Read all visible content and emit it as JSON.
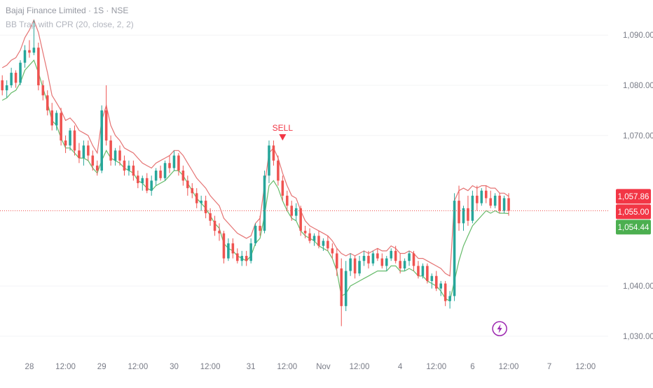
{
  "legend": {
    "symbol_line": "Bajaj Finance Limited · 1S · NSE",
    "indicator_line": "BB Trap with CPR (20, close, 2, 2)"
  },
  "colors": {
    "up": "#26a69a",
    "down": "#ef5350",
    "upper_band": "#e57373",
    "lower_band": "#66bb6a",
    "price_line": "#ef5350",
    "axis_text": "#787b86",
    "badge_red": "#f23645",
    "badge_green": "#4caf50",
    "signal": "#f23645",
    "bolt": "#9c27b0"
  },
  "price_axis": {
    "ticks": [
      {
        "value": 1090,
        "label": "1,090.00"
      },
      {
        "value": 1080,
        "label": "1,080.00"
      },
      {
        "value": 1070,
        "label": "1,070.00"
      },
      {
        "value": 1040,
        "label": "1,040.00"
      },
      {
        "value": 1030,
        "label": "1,030.00"
      }
    ],
    "badges": [
      {
        "value": 1057.86,
        "label": "1,057.86",
        "color": "#f23645"
      },
      {
        "value": 1055.0,
        "label": "1,055.00",
        "color": "#f23645"
      },
      {
        "value": 1054.44,
        "label": "1,054.44",
        "color": "#4caf50"
      }
    ]
  },
  "time_axis": {
    "ticks": [
      {
        "bar": 6,
        "label": "28"
      },
      {
        "bar": 14,
        "label": "12:00"
      },
      {
        "bar": 22,
        "label": "29"
      },
      {
        "bar": 30,
        "label": "12:00"
      },
      {
        "bar": 38,
        "label": "30"
      },
      {
        "bar": 46,
        "label": "12:00"
      },
      {
        "bar": 55,
        "label": "31"
      },
      {
        "bar": 63,
        "label": "12:00"
      },
      {
        "bar": 71,
        "label": "Nov"
      },
      {
        "bar": 79,
        "label": "12:00"
      },
      {
        "bar": 88,
        "label": "4"
      },
      {
        "bar": 96,
        "label": "12:00"
      },
      {
        "bar": 104,
        "label": "6"
      },
      {
        "bar": 112,
        "label": "12:00"
      },
      {
        "bar": 121,
        "label": "7"
      },
      {
        "bar": 129,
        "label": "12:00"
      }
    ]
  },
  "chart_data": {
    "type": "candlestick",
    "title": "Bajaj Finance Limited · 1S · NSE",
    "indicator": "BB Trap with CPR (20, close, 2, 2)",
    "ylim": [
      1026.5,
      1097
    ],
    "x_range": [
      -0.5,
      134
    ],
    "last_price": 1055.0,
    "candles": [
      [
        1081.0,
        1082.0,
        1078.0,
        1079.0
      ],
      [
        1079.0,
        1081.0,
        1077.5,
        1080.0
      ],
      [
        1080.0,
        1083.5,
        1079.5,
        1082.5
      ],
      [
        1082.5,
        1083.0,
        1079.5,
        1080.5
      ],
      [
        1080.5,
        1085.0,
        1080.0,
        1084.5
      ],
      [
        1084.5,
        1088.0,
        1083.5,
        1087.0
      ],
      [
        1087.0,
        1089.0,
        1085.5,
        1086.5
      ],
      [
        1086.5,
        1093.0,
        1086.0,
        1087.5
      ],
      [
        1087.5,
        1088.5,
        1079.0,
        1080.0
      ],
      [
        1080.0,
        1081.0,
        1077.0,
        1078.0
      ],
      [
        1078.0,
        1079.0,
        1074.0,
        1075.0
      ],
      [
        1075.0,
        1076.5,
        1071.0,
        1072.0
      ],
      [
        1072.0,
        1075.0,
        1071.0,
        1074.5
      ],
      [
        1074.5,
        1075.5,
        1068.0,
        1069.0
      ],
      [
        1069.0,
        1070.0,
        1066.5,
        1068.0
      ],
      [
        1068.0,
        1071.5,
        1067.0,
        1071.0
      ],
      [
        1071.0,
        1072.0,
        1066.0,
        1067.0
      ],
      [
        1067.0,
        1068.5,
        1064.5,
        1065.5
      ],
      [
        1065.5,
        1069.0,
        1064.0,
        1068.0
      ],
      [
        1068.0,
        1069.0,
        1065.0,
        1066.0
      ],
      [
        1066.0,
        1067.0,
        1063.0,
        1064.0
      ],
      [
        1064.0,
        1065.0,
        1062.0,
        1063.0
      ],
      [
        1063.0,
        1076.0,
        1062.5,
        1075.0
      ],
      [
        1075.0,
        1080.0,
        1068.0,
        1069.0
      ],
      [
        1069.0,
        1070.0,
        1064.0,
        1065.0
      ],
      [
        1065.0,
        1067.5,
        1064.0,
        1067.0
      ],
      [
        1067.0,
        1068.0,
        1064.0,
        1065.0
      ],
      [
        1065.0,
        1066.0,
        1062.0,
        1063.0
      ],
      [
        1063.0,
        1065.0,
        1062.0,
        1064.0
      ],
      [
        1064.0,
        1065.0,
        1061.0,
        1062.0
      ],
      [
        1062.0,
        1063.0,
        1059.5,
        1060.5
      ],
      [
        1060.5,
        1062.0,
        1059.0,
        1061.5
      ],
      [
        1061.5,
        1062.5,
        1058.5,
        1059.0
      ],
      [
        1059.0,
        1062.0,
        1058.0,
        1061.0
      ],
      [
        1061.0,
        1063.5,
        1060.0,
        1063.0
      ],
      [
        1063.0,
        1064.0,
        1061.0,
        1061.5
      ],
      [
        1061.5,
        1065.0,
        1061.0,
        1064.5
      ],
      [
        1064.5,
        1066.0,
        1062.5,
        1063.5
      ],
      [
        1063.5,
        1067.0,
        1063.0,
        1066.0
      ],
      [
        1066.0,
        1066.5,
        1062.0,
        1063.0
      ],
      [
        1063.0,
        1064.0,
        1060.0,
        1061.0
      ],
      [
        1061.0,
        1062.0,
        1058.0,
        1059.5
      ],
      [
        1059.5,
        1060.5,
        1057.5,
        1058.5
      ],
      [
        1058.5,
        1059.5,
        1055.5,
        1056.5
      ],
      [
        1056.5,
        1058.0,
        1055.0,
        1057.0
      ],
      [
        1057.0,
        1058.0,
        1053.5,
        1054.5
      ],
      [
        1054.5,
        1055.5,
        1052.0,
        1053.0
      ],
      [
        1053.0,
        1054.0,
        1050.0,
        1051.0
      ],
      [
        1051.0,
        1052.5,
        1049.0,
        1050.5
      ],
      [
        1050.5,
        1051.0,
        1044.5,
        1045.5
      ],
      [
        1045.5,
        1049.5,
        1045.0,
        1048.5
      ],
      [
        1048.5,
        1049.5,
        1045.5,
        1046.5
      ],
      [
        1046.5,
        1047.5,
        1044.5,
        1045.0
      ],
      [
        1045.0,
        1047.0,
        1044.0,
        1046.0
      ],
      [
        1046.0,
        1047.0,
        1044.0,
        1045.0
      ],
      [
        1045.0,
        1049.5,
        1044.5,
        1048.5
      ],
      [
        1048.5,
        1052.5,
        1048.0,
        1052.0
      ],
      [
        1052.0,
        1054.0,
        1050.0,
        1051.0
      ],
      [
        1051.0,
        1063.0,
        1050.5,
        1062.0
      ],
      [
        1062.0,
        1069.0,
        1060.5,
        1068.0
      ],
      [
        1068.0,
        1069.0,
        1064.0,
        1065.0
      ],
      [
        1065.0,
        1066.0,
        1060.0,
        1061.0
      ],
      [
        1061.0,
        1062.0,
        1057.0,
        1058.0
      ],
      [
        1058.0,
        1059.0,
        1055.0,
        1056.0
      ],
      [
        1056.0,
        1057.0,
        1053.0,
        1054.0
      ],
      [
        1054.0,
        1056.5,
        1053.0,
        1055.5
      ],
      [
        1055.5,
        1056.0,
        1050.0,
        1051.0
      ],
      [
        1051.0,
        1052.0,
        1049.5,
        1050.5
      ],
      [
        1050.5,
        1051.5,
        1048.5,
        1049.0
      ],
      [
        1049.0,
        1050.5,
        1048.0,
        1050.0
      ],
      [
        1050.0,
        1051.0,
        1047.5,
        1048.0
      ],
      [
        1048.0,
        1049.5,
        1047.0,
        1049.0
      ],
      [
        1049.0,
        1050.0,
        1047.0,
        1047.5
      ],
      [
        1047.5,
        1048.5,
        1045.5,
        1046.5
      ],
      [
        1046.5,
        1047.5,
        1042.0,
        1043.5
      ],
      [
        1043.5,
        1045.5,
        1032.0,
        1036.0
      ],
      [
        1036.0,
        1045.0,
        1035.0,
        1043.0
      ],
      [
        1043.0,
        1046.5,
        1042.0,
        1045.5
      ],
      [
        1045.5,
        1046.0,
        1041.5,
        1042.5
      ],
      [
        1042.5,
        1046.0,
        1042.0,
        1045.0
      ],
      [
        1045.0,
        1047.0,
        1044.0,
        1046.0
      ],
      [
        1046.0,
        1047.0,
        1043.5,
        1044.5
      ],
      [
        1044.5,
        1047.0,
        1044.0,
        1046.5
      ],
      [
        1046.5,
        1047.5,
        1045.0,
        1045.5
      ],
      [
        1045.5,
        1046.5,
        1043.5,
        1044.0
      ],
      [
        1044.0,
        1046.0,
        1043.0,
        1045.5
      ],
      [
        1045.5,
        1047.5,
        1045.0,
        1047.0
      ],
      [
        1047.0,
        1048.0,
        1044.5,
        1045.0
      ],
      [
        1045.0,
        1046.5,
        1042.5,
        1043.5
      ],
      [
        1043.5,
        1045.5,
        1043.0,
        1045.0
      ],
      [
        1045.0,
        1047.0,
        1044.0,
        1046.5
      ],
      [
        1046.5,
        1047.0,
        1043.0,
        1044.0
      ],
      [
        1044.0,
        1045.0,
        1041.5,
        1042.0
      ],
      [
        1042.0,
        1044.5,
        1041.5,
        1044.0
      ],
      [
        1044.0,
        1044.5,
        1040.5,
        1041.0
      ],
      [
        1041.0,
        1042.5,
        1039.5,
        1042.0
      ],
      [
        1042.0,
        1043.0,
        1039.0,
        1039.5
      ],
      [
        1039.5,
        1041.0,
        1038.0,
        1040.5
      ],
      [
        1040.5,
        1041.0,
        1036.0,
        1037.0
      ],
      [
        1037.0,
        1039.0,
        1035.5,
        1038.0
      ],
      [
        1038.0,
        1058.5,
        1037.0,
        1057.0
      ],
      [
        1057.0,
        1060.0,
        1051.0,
        1052.5
      ],
      [
        1052.5,
        1056.0,
        1051.0,
        1055.5
      ],
      [
        1055.5,
        1058.0,
        1052.0,
        1053.0
      ],
      [
        1053.0,
        1059.0,
        1052.5,
        1058.0
      ],
      [
        1058.0,
        1060.0,
        1055.0,
        1056.5
      ],
      [
        1056.5,
        1059.5,
        1056.0,
        1059.0
      ],
      [
        1059.0,
        1060.0,
        1056.5,
        1057.5
      ],
      [
        1057.5,
        1059.0,
        1055.5,
        1056.0
      ],
      [
        1056.0,
        1058.5,
        1055.5,
        1058.0
      ],
      [
        1058.0,
        1058.5,
        1054.5,
        1055.0
      ],
      [
        1055.0,
        1058.0,
        1054.5,
        1057.5
      ],
      [
        1057.5,
        1058.5,
        1054.0,
        1055.0
      ]
    ],
    "series": [
      {
        "name": "upper",
        "values": [
          1083.5,
          1084.0,
          1085.0,
          1085.5,
          1087.0,
          1089.5,
          1091.0,
          1093.0,
          1090.5,
          1086.5,
          1082.5,
          1078.0,
          1076.5,
          1075.0,
          1073.0,
          1073.5,
          1072.5,
          1071.0,
          1070.5,
          1070.0,
          1068.0,
          1066.5,
          1073.0,
          1076.0,
          1072.0,
          1070.0,
          1069.0,
          1067.5,
          1067.0,
          1066.5,
          1065.5,
          1064.5,
          1064.0,
          1063.5,
          1064.5,
          1065.0,
          1065.5,
          1066.0,
          1067.0,
          1067.0,
          1066.0,
          1064.5,
          1063.0,
          1061.5,
          1060.5,
          1059.5,
          1058.0,
          1057.0,
          1056.0,
          1053.5,
          1052.5,
          1051.5,
          1050.5,
          1050.0,
          1049.5,
          1050.0,
          1052.5,
          1053.5,
          1060.0,
          1066.5,
          1067.5,
          1065.5,
          1062.5,
          1060.0,
          1058.0,
          1057.5,
          1055.0,
          1053.0,
          1052.0,
          1051.5,
          1051.0,
          1050.5,
          1050.0,
          1049.0,
          1047.5,
          1046.5,
          1046.0,
          1046.5,
          1046.0,
          1046.5,
          1047.0,
          1046.5,
          1047.0,
          1047.5,
          1047.0,
          1047.0,
          1048.0,
          1047.5,
          1046.5,
          1046.5,
          1047.0,
          1046.5,
          1045.5,
          1045.5,
          1045.0,
          1044.5,
          1044.0,
          1043.5,
          1042.5,
          1042.0,
          1057.0,
          1059.0,
          1059.5,
          1059.0,
          1060.0,
          1059.5,
          1060.0,
          1060.0,
          1059.5,
          1059.5,
          1058.5,
          1058.5,
          1057.86
        ]
      },
      {
        "name": "lower",
        "values": [
          1077.0,
          1077.5,
          1078.5,
          1079.0,
          1080.5,
          1083.0,
          1084.0,
          1085.0,
          1082.5,
          1079.5,
          1076.5,
          1073.0,
          1072.0,
          1069.5,
          1067.5,
          1067.5,
          1066.5,
          1065.5,
          1065.5,
          1065.0,
          1063.5,
          1062.5,
          1065.0,
          1067.0,
          1065.5,
          1065.0,
          1064.5,
          1063.5,
          1063.0,
          1062.5,
          1061.0,
          1060.5,
          1059.5,
          1059.0,
          1060.0,
          1060.5,
          1061.0,
          1062.0,
          1063.0,
          1063.0,
          1062.0,
          1060.5,
          1059.0,
          1057.5,
          1056.5,
          1055.5,
          1054.0,
          1052.5,
          1051.5,
          1048.5,
          1047.5,
          1047.0,
          1046.0,
          1045.5,
          1045.0,
          1046.0,
          1048.5,
          1049.5,
          1054.0,
          1060.0,
          1061.0,
          1059.5,
          1057.0,
          1055.0,
          1053.5,
          1053.0,
          1051.0,
          1050.0,
          1049.5,
          1049.0,
          1048.0,
          1047.5,
          1047.0,
          1045.5,
          1043.0,
          1038.0,
          1038.5,
          1040.0,
          1040.5,
          1041.0,
          1041.5,
          1042.0,
          1042.5,
          1043.0,
          1043.0,
          1043.0,
          1044.0,
          1044.0,
          1043.0,
          1043.0,
          1043.5,
          1043.0,
          1042.0,
          1042.0,
          1041.0,
          1040.5,
          1040.0,
          1039.0,
          1037.5,
          1037.0,
          1041.0,
          1045.0,
          1048.0,
          1050.0,
          1052.0,
          1053.0,
          1054.0,
          1055.0,
          1054.5,
          1055.0,
          1054.5,
          1054.5,
          1054.44
        ]
      }
    ],
    "signals": [
      {
        "bar": 62,
        "label": "SELL",
        "value": 1069.0
      }
    ],
    "markers": [
      {
        "bar": 110,
        "value": 1031.5,
        "icon": "lightning-bolt-icon"
      }
    ]
  }
}
